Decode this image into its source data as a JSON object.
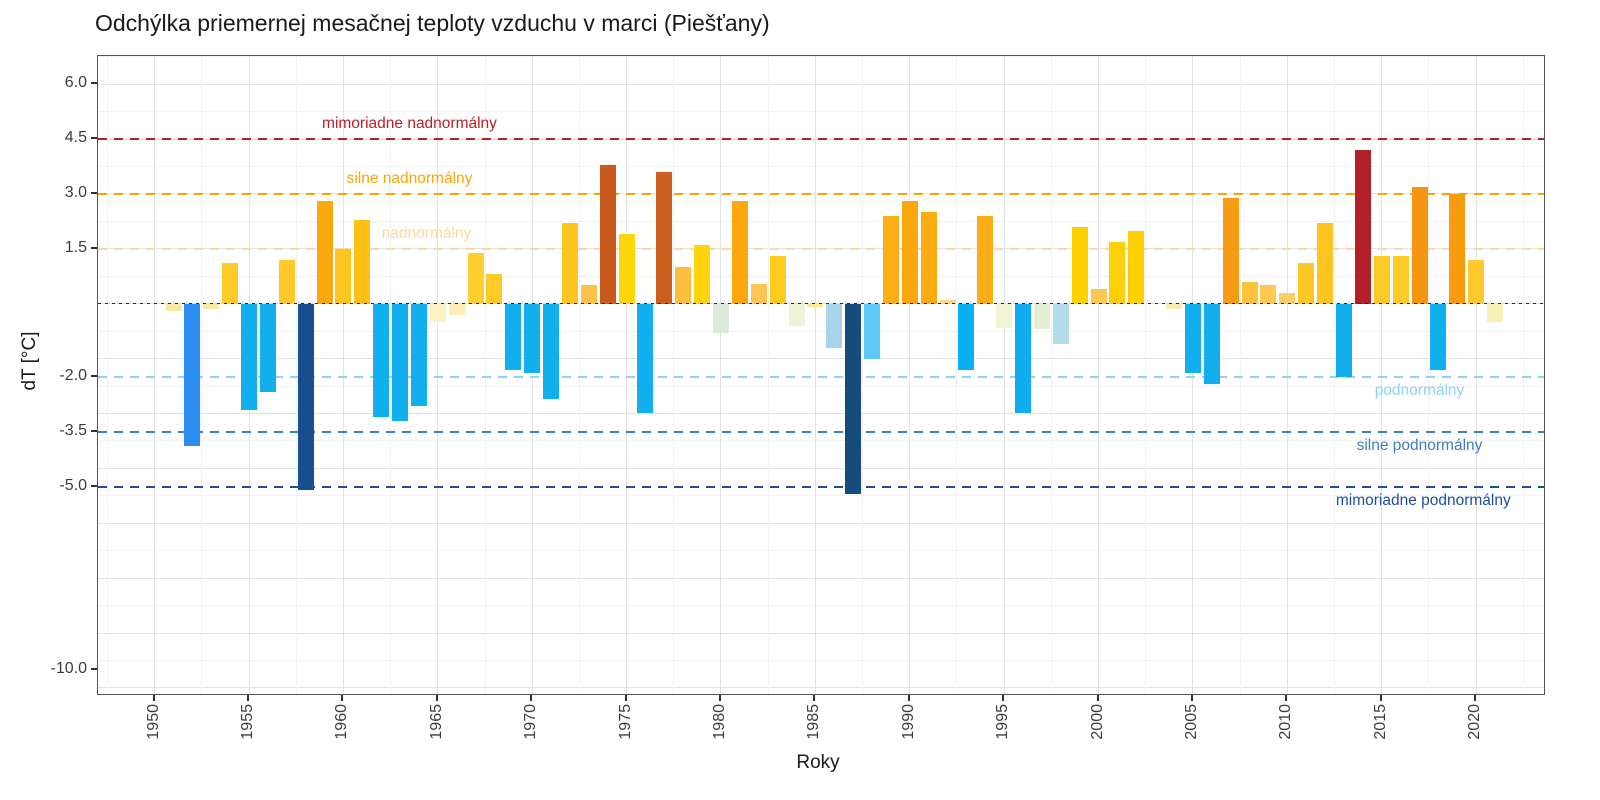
{
  "title": "Odchýlka priemernej mesačnej teploty vzduchu v marci (Piešťany)",
  "chart_data": {
    "type": "bar",
    "title": "Odchýlka priemernej mesačnej teploty vzduchu v marci (Piešťany)",
    "xlabel": "Roky",
    "ylabel": "dT [°C]",
    "x_domain": [
      1947.0,
      2023.7
    ],
    "y_domain": [
      -10.72,
      6.77
    ],
    "grid": {
      "major_step_y": 1.5,
      "minor_step_y": 0.75,
      "major_step_x": 5,
      "minor_step_x": 2.5
    },
    "x_ticks": [
      1950,
      1955,
      1960,
      1965,
      1970,
      1975,
      1980,
      1985,
      1990,
      1995,
      2000,
      2005,
      2010,
      2015,
      2020
    ],
    "x_tick_labels": [
      "1950",
      "1955",
      "1960",
      "1965",
      "1970",
      "1975",
      "1980",
      "1985",
      "1990",
      "1995",
      "2000",
      "2005",
      "2010",
      "2015",
      "2020"
    ],
    "y_ticks": [
      6.0,
      4.5,
      3.0,
      1.5,
      -2.0,
      -3.5,
      -5.0,
      -10.0
    ],
    "y_tick_labels": [
      "6.0",
      "4.5",
      "3.0",
      "1.5",
      "-2.0",
      "-3.5",
      "-5.0",
      "-10.0"
    ],
    "zero_line": {
      "value": 0,
      "color": "#2b2b2b",
      "style": "dotted"
    },
    "thresholds": [
      {
        "value": 4.5,
        "color": "#b81f24",
        "label": "mimoriadne nadnormálny",
        "position": "above",
        "anchor_year": 1963.5
      },
      {
        "value": 3.0,
        "color": "#fca40a",
        "label": "silne nadnormálny",
        "position": "above",
        "anchor_year": 1963.5
      },
      {
        "value": 1.5,
        "color": "#fbd9a0",
        "label": "nadnormálny",
        "position": "above",
        "anchor_year": 1964.4
      },
      {
        "value": -2.0,
        "color": "#8ed3f6",
        "label": "podnormálny",
        "position": "below",
        "anchor_year": 2017.0
      },
      {
        "value": -3.5,
        "color": "#3d7ebe",
        "label": "silne podnormálny",
        "position": "below",
        "anchor_year": 2017.0
      },
      {
        "value": -5.0,
        "color": "#1c4f9e",
        "label": "mimoriadne podnormálny",
        "position": "below",
        "anchor_year": 2017.2
      }
    ],
    "bars": [
      {
        "year": 1951,
        "value": -0.2,
        "color": "#fae9a5"
      },
      {
        "year": 1952,
        "value": -3.9,
        "color": "#2b8cf0"
      },
      {
        "year": 1953,
        "value": -0.15,
        "color": "#fae9a5"
      },
      {
        "year": 1954,
        "value": 1.1,
        "color": "#ffc927"
      },
      {
        "year": 1955,
        "value": -2.9,
        "color": "#12afef"
      },
      {
        "year": 1956,
        "value": -2.4,
        "color": "#12afef"
      },
      {
        "year": 1957,
        "value": 1.2,
        "color": "#ffc927"
      },
      {
        "year": 1958,
        "value": -5.1,
        "color": "#174e8d"
      },
      {
        "year": 1959,
        "value": 2.8,
        "color": "#fba70e"
      },
      {
        "year": 1960,
        "value": 1.5,
        "color": "#fec41f"
      },
      {
        "year": 1961,
        "value": 2.3,
        "color": "#fdc116"
      },
      {
        "year": 1962,
        "value": -3.1,
        "color": "#12afef"
      },
      {
        "year": 1963,
        "value": -3.2,
        "color": "#12afef"
      },
      {
        "year": 1964,
        "value": -2.8,
        "color": "#12afef"
      },
      {
        "year": 1965,
        "value": -0.5,
        "color": "#fcf2c3"
      },
      {
        "year": 1966,
        "value": -0.3,
        "color": "#fbefb5"
      },
      {
        "year": 1967,
        "value": 1.4,
        "color": "#fecf2f"
      },
      {
        "year": 1968,
        "value": 0.8,
        "color": "#fdcb28"
      },
      {
        "year": 1969,
        "value": -1.8,
        "color": "#12afef"
      },
      {
        "year": 1970,
        "value": -1.9,
        "color": "#12afef"
      },
      {
        "year": 1971,
        "value": -2.6,
        "color": "#12afef"
      },
      {
        "year": 1972,
        "value": 2.2,
        "color": "#fdc51f"
      },
      {
        "year": 1973,
        "value": 0.5,
        "color": "#ffc14a"
      },
      {
        "year": 1974,
        "value": 3.8,
        "color": "#c85a1e"
      },
      {
        "year": 1975,
        "value": 1.9,
        "color": "#ffd60a"
      },
      {
        "year": 1976,
        "value": -3.0,
        "color": "#12afef"
      },
      {
        "year": 1977,
        "value": 3.6,
        "color": "#cc5e20"
      },
      {
        "year": 1978,
        "value": 1.0,
        "color": "#febe3e"
      },
      {
        "year": 1979,
        "value": 1.6,
        "color": "#ffd30d"
      },
      {
        "year": 1980,
        "value": -0.8,
        "color": "#dceadc"
      },
      {
        "year": 1981,
        "value": 2.8,
        "color": "#fba70e"
      },
      {
        "year": 1982,
        "value": 0.55,
        "color": "#ffc554"
      },
      {
        "year": 1983,
        "value": 1.3,
        "color": "#ffcb1d"
      },
      {
        "year": 1984,
        "value": -0.6,
        "color": "#eff2d8"
      },
      {
        "year": 1985,
        "value": -0.1,
        "color": "#ffe992"
      },
      {
        "year": 1986,
        "value": -1.2,
        "color": "#a9d3e8"
      },
      {
        "year": 1987,
        "value": -5.2,
        "color": "#164b7f"
      },
      {
        "year": 1988,
        "value": -1.5,
        "color": "#5bc8f5"
      },
      {
        "year": 1989,
        "value": 2.4,
        "color": "#fcae17"
      },
      {
        "year": 1990,
        "value": 2.8,
        "color": "#fba70e"
      },
      {
        "year": 1991,
        "value": 2.5,
        "color": "#fcac12"
      },
      {
        "year": 1992,
        "value": 0.1,
        "color": "#fbd88a"
      },
      {
        "year": 1993,
        "value": -1.8,
        "color": "#0ab0f0"
      },
      {
        "year": 1994,
        "value": 2.4,
        "color": "#fbad18"
      },
      {
        "year": 1995,
        "value": -0.65,
        "color": "#f2f3d4"
      },
      {
        "year": 1996,
        "value": -3.0,
        "color": "#10aeef"
      },
      {
        "year": 1997,
        "value": -0.7,
        "color": "#e4efd6"
      },
      {
        "year": 1998,
        "value": -1.1,
        "color": "#b2dcea"
      },
      {
        "year": 1999,
        "value": 2.1,
        "color": "#ffd000"
      },
      {
        "year": 2000,
        "value": 0.4,
        "color": "#fec851"
      },
      {
        "year": 2001,
        "value": 1.7,
        "color": "#ffd00a"
      },
      {
        "year": 2002,
        "value": 2.0,
        "color": "#ffd000"
      },
      {
        "year": 2004,
        "value": -0.15,
        "color": "#fbecab"
      },
      {
        "year": 2005,
        "value": -1.9,
        "color": "#12afef"
      },
      {
        "year": 2006,
        "value": -2.2,
        "color": "#12afef"
      },
      {
        "year": 2007,
        "value": 2.9,
        "color": "#f69c12"
      },
      {
        "year": 2008,
        "value": 0.6,
        "color": "#fec23b"
      },
      {
        "year": 2009,
        "value": 0.5,
        "color": "#fec851"
      },
      {
        "year": 2010,
        "value": 0.3,
        "color": "#fecd63"
      },
      {
        "year": 2011,
        "value": 1.1,
        "color": "#fec824"
      },
      {
        "year": 2012,
        "value": 2.2,
        "color": "#fdc51f"
      },
      {
        "year": 2013,
        "value": -2.0,
        "color": "#12afef"
      },
      {
        "year": 2014,
        "value": 4.2,
        "color": "#b2202a"
      },
      {
        "year": 2015,
        "value": 1.3,
        "color": "#feca28"
      },
      {
        "year": 2016,
        "value": 1.3,
        "color": "#feca28"
      },
      {
        "year": 2017,
        "value": 3.2,
        "color": "#f59510"
      },
      {
        "year": 2018,
        "value": -1.8,
        "color": "#12afef"
      },
      {
        "year": 2019,
        "value": 3.0,
        "color": "#f89b0d"
      },
      {
        "year": 2020,
        "value": 1.2,
        "color": "#fec92b"
      },
      {
        "year": 2021,
        "value": -0.5,
        "color": "#fbefb8"
      }
    ]
  }
}
